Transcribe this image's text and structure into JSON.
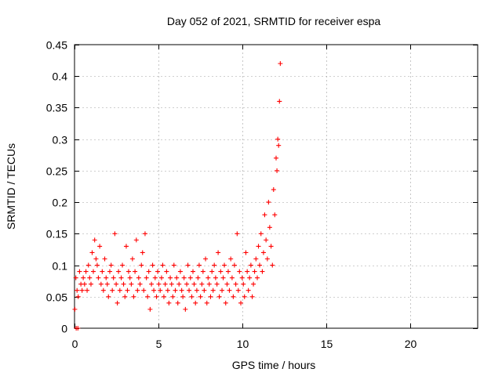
{
  "chart_data": {
    "type": "scatter",
    "title": "Day 052 of 2021, SRMTID for receiver espa",
    "xlabel": "GPS time / hours",
    "ylabel": "SRMTID / TECUs",
    "xlim": [
      0,
      24
    ],
    "ylim": [
      0,
      0.45
    ],
    "xticks": [
      0,
      5,
      10,
      15,
      20
    ],
    "yticks": [
      0,
      0.05,
      0.1,
      0.15,
      0.2,
      0.25,
      0.3,
      0.35,
      0.4,
      0.45
    ],
    "grid": true,
    "marker": "+",
    "color": "#ff0000",
    "series": [
      {
        "name": "espa",
        "x": [
          0.02,
          0.08,
          0.15,
          0.22,
          0.3,
          0.38,
          0.45,
          0.52,
          0.6,
          0.68,
          0.75,
          0.83,
          0.9,
          0.98,
          1.05,
          1.12,
          1.2,
          1.28,
          1.35,
          1.42,
          1.5,
          1.58,
          1.65,
          1.72,
          1.8,
          1.88,
          1.95,
          2.02,
          2.1,
          2.18,
          2.25,
          2.32,
          2.4,
          2.48,
          2.55,
          2.62,
          2.7,
          2.78,
          2.85,
          2.92,
          3.0,
          3.08,
          3.15,
          3.22,
          3.3,
          3.38,
          3.45,
          3.52,
          3.6,
          3.68,
          3.75,
          3.82,
          3.9,
          3.98,
          4.05,
          4.12,
          4.2,
          4.28,
          4.35,
          4.42,
          4.5,
          4.58,
          4.65,
          4.72,
          4.8,
          4.88,
          4.95,
          5.02,
          5.1,
          5.18,
          5.25,
          5.32,
          5.4,
          5.48,
          5.55,
          5.62,
          5.7,
          5.78,
          5.85,
          5.92,
          6.0,
          6.08,
          6.15,
          6.22,
          6.3,
          6.38,
          6.45,
          6.52,
          6.6,
          6.68,
          6.75,
          6.82,
          6.9,
          6.98,
          7.05,
          7.12,
          7.2,
          7.28,
          7.35,
          7.42,
          7.5,
          7.58,
          7.65,
          7.72,
          7.8,
          7.88,
          7.95,
          8.02,
          8.1,
          8.18,
          8.25,
          8.32,
          8.4,
          8.48,
          8.55,
          8.62,
          8.7,
          8.78,
          8.85,
          8.92,
          9.0,
          9.08,
          9.15,
          9.22,
          9.3,
          9.38,
          9.45,
          9.52,
          9.6,
          9.68,
          9.75,
          9.82,
          9.9,
          9.98,
          10.05,
          10.12,
          10.2,
          10.28,
          10.35,
          10.42,
          10.5,
          10.58,
          10.65,
          10.72,
          10.8,
          10.88,
          10.95,
          11.02,
          11.1,
          11.18,
          11.25,
          11.32,
          11.4,
          11.48,
          11.55,
          11.62,
          11.7,
          11.78,
          11.85,
          11.92,
          12.0,
          12.05,
          12.1,
          12.15,
          12.2,
          12.25,
          0.1,
          0.2
        ],
        "y": [
          0.03,
          0.08,
          0.06,
          0.05,
          0.09,
          0.07,
          0.06,
          0.08,
          0.07,
          0.09,
          0.06,
          0.1,
          0.08,
          0.07,
          0.12,
          0.09,
          0.14,
          0.11,
          0.1,
          0.08,
          0.13,
          0.07,
          0.09,
          0.06,
          0.11,
          0.08,
          0.07,
          0.05,
          0.09,
          0.1,
          0.06,
          0.08,
          0.15,
          0.07,
          0.04,
          0.09,
          0.06,
          0.08,
          0.1,
          0.07,
          0.05,
          0.13,
          0.06,
          0.09,
          0.08,
          0.07,
          0.11,
          0.05,
          0.09,
          0.14,
          0.06,
          0.08,
          0.07,
          0.1,
          0.12,
          0.06,
          0.15,
          0.08,
          0.05,
          0.09,
          0.03,
          0.07,
          0.1,
          0.06,
          0.08,
          0.05,
          0.09,
          0.07,
          0.06,
          0.08,
          0.1,
          0.05,
          0.07,
          0.09,
          0.06,
          0.04,
          0.08,
          0.07,
          0.05,
          0.1,
          0.06,
          0.08,
          0.04,
          0.07,
          0.09,
          0.06,
          0.05,
          0.08,
          0.03,
          0.07,
          0.1,
          0.06,
          0.08,
          0.05,
          0.09,
          0.07,
          0.04,
          0.06,
          0.08,
          0.1,
          0.05,
          0.07,
          0.09,
          0.06,
          0.11,
          0.04,
          0.08,
          0.07,
          0.05,
          0.09,
          0.06,
          0.1,
          0.08,
          0.07,
          0.12,
          0.05,
          0.09,
          0.06,
          0.08,
          0.1,
          0.04,
          0.07,
          0.09,
          0.06,
          0.11,
          0.08,
          0.05,
          0.1,
          0.07,
          0.15,
          0.06,
          0.09,
          0.04,
          0.08,
          0.07,
          0.05,
          0.12,
          0.09,
          0.06,
          0.08,
          0.1,
          0.05,
          0.07,
          0.09,
          0.11,
          0.08,
          0.13,
          0.1,
          0.15,
          0.09,
          0.12,
          0.18,
          0.14,
          0.11,
          0.2,
          0.16,
          0.13,
          0.1,
          0.22,
          0.18,
          0.27,
          0.25,
          0.3,
          0.29,
          0.36,
          0.42,
          0.0,
          0.0
        ]
      }
    ]
  }
}
